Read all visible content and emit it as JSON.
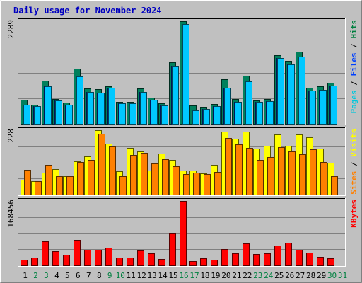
{
  "chart_data": {
    "type": "bar",
    "title": "Daily usage for November 2024",
    "categories": [
      "1",
      "2",
      "3",
      "4",
      "5",
      "6",
      "7",
      "8",
      "9",
      "10",
      "11",
      "12",
      "13",
      "14",
      "15",
      "16",
      "17",
      "18",
      "19",
      "20",
      "21",
      "22",
      "23",
      "24",
      "25",
      "26",
      "27",
      "28",
      "29",
      "30",
      "31"
    ],
    "weekend_categories": [
      "2",
      "3",
      "9",
      "10",
      "16",
      "17",
      "23",
      "24",
      "30",
      "31"
    ],
    "panels": [
      {
        "id": "hits-files-pages",
        "max_label": "2289",
        "ymax": 2289,
        "side_label": [
          {
            "text": "Pages",
            "color": "#00c8dc"
          },
          {
            "text": " / ",
            "color": "#000000"
          },
          {
            "text": "Files",
            "color": "#0040ff"
          },
          {
            "text": " / ",
            "color": "#000000"
          },
          {
            "text": "Hits",
            "color": "#008040"
          }
        ],
        "series": [
          {
            "name": "Hits",
            "color": "#00805c",
            "values": [
              540,
              430,
              965,
              560,
              470,
              1230,
              790,
              770,
              830,
              490,
              495,
              785,
              590,
              455,
              1380,
              2289,
              415,
              385,
              440,
              990,
              560,
              1070,
              520,
              560,
              1530,
              1410,
              1615,
              810,
              830,
              910
            ]
          },
          {
            "name": "Files",
            "color": "#0040ff",
            "values": [
              425,
              400,
              840,
              525,
              420,
              1050,
              710,
              690,
              800,
              460,
              460,
              715,
              530,
              415,
              1300,
              2225,
              300,
              335,
              400,
              800,
              490,
              950,
              490,
              505,
              1470,
              1320,
              1500,
              740,
              760,
              860
            ]
          },
          {
            "name": "Pages",
            "color": "#00c8ff",
            "values": [
              425,
              400,
              840,
              525,
              420,
              1050,
              710,
              690,
              800,
              460,
              460,
              715,
              530,
              415,
              1300,
              2225,
              300,
              335,
              400,
              800,
              490,
              950,
              490,
              505,
              1470,
              1320,
              1500,
              740,
              760,
              860
            ]
          }
        ]
      },
      {
        "id": "visits-sites",
        "max_label": "228",
        "ymax": 228,
        "side_label": [
          {
            "text": "Sites",
            "color": "#ff8000"
          },
          {
            "text": " / ",
            "color": "#000000"
          },
          {
            "text": "Visits",
            "color": "#ffff00"
          }
        ],
        "series": [
          {
            "name": "Visits",
            "color": "#ffff00",
            "values": [
              52,
              48,
              77,
              90,
              66,
              118,
              136,
              228,
              180,
              82,
              165,
              154,
              85,
              145,
              122,
              84,
              84,
              76,
              104,
              222,
              198,
              222,
              162,
              172,
              212,
              172,
              212,
              204,
              164,
              112
            ]
          },
          {
            "name": "Sites",
            "color": "#ff8000",
            "values": [
              88,
              47,
              104,
              64,
              66,
              115,
              123,
              216,
              170,
              65,
              140,
              148,
              111,
              126,
              99,
              73,
              77,
              72,
              79,
              200,
              179,
              166,
              123,
              132,
              168,
              152,
              144,
              160,
              115,
              66
            ]
          }
        ]
      },
      {
        "id": "kbytes",
        "max_label": "168456",
        "ymax": 168456,
        "side_label": [
          {
            "text": "KBytes",
            "color": "#ff0000"
          }
        ],
        "series": [
          {
            "name": "KBytes",
            "color": "#ff0000",
            "values": [
              15000,
              20000,
              63000,
              37000,
              28000,
              66000,
              41000,
              40000,
              47000,
              20000,
              20000,
              39000,
              32000,
              16000,
              84000,
              168456,
              12000,
              19000,
              15000,
              42000,
              31000,
              57000,
              30000,
              31000,
              52000,
              60000,
              40000,
              33000,
              22000,
              19000
            ]
          }
        ]
      }
    ]
  }
}
